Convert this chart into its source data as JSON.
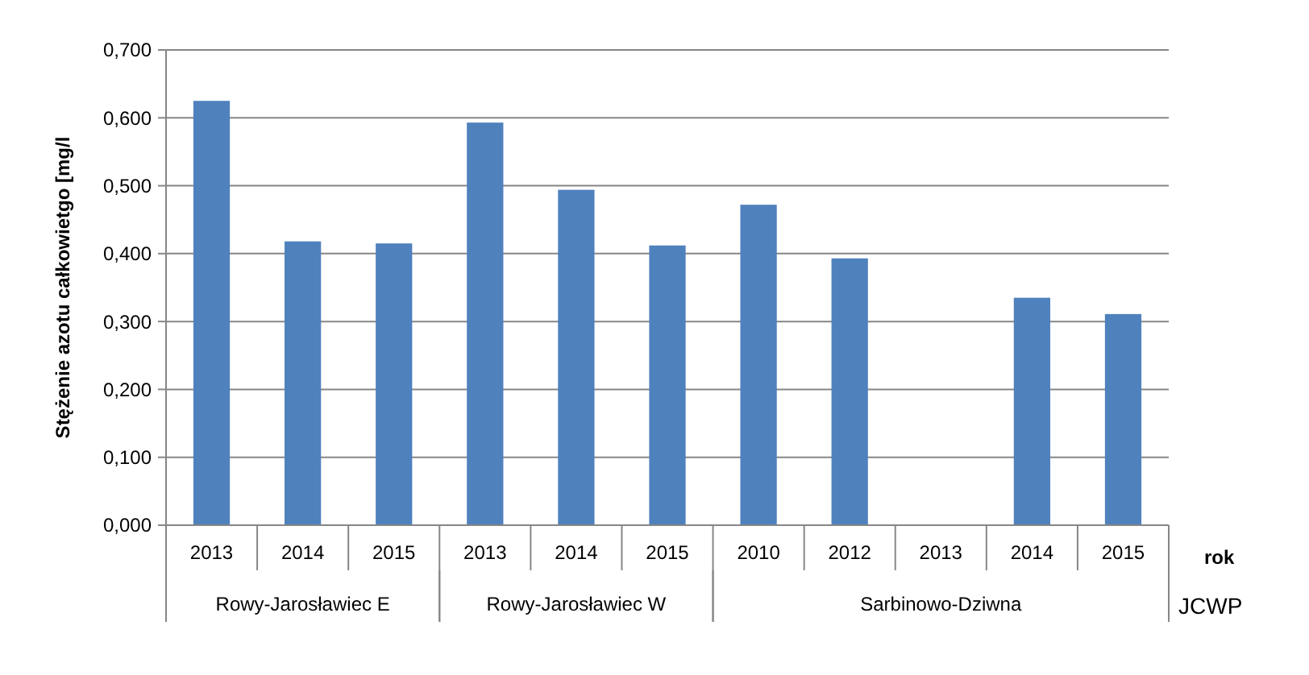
{
  "chart_data": {
    "type": "bar",
    "ylabel": "Stężenie azotu całkowietgo  [mg/l",
    "categories": [
      "2013",
      "2014",
      "2015",
      "2013",
      "2014",
      "2015",
      "2010",
      "2012",
      "2013",
      "2014",
      "2015"
    ],
    "values": [
      0.625,
      0.418,
      0.415,
      0.593,
      0.494,
      0.412,
      0.472,
      0.393,
      null,
      0.335,
      0.311
    ],
    "color": "#4f81bd",
    "ylim": [
      0,
      0.7
    ],
    "yticks": [
      {
        "value": 0,
        "label": "0,000"
      },
      {
        "value": 0.1,
        "label": "0,100"
      },
      {
        "value": 0.2,
        "label": "0,200"
      },
      {
        "value": 0.3,
        "label": "0,300"
      },
      {
        "value": 0.4,
        "label": "0,400"
      },
      {
        "value": 0.5,
        "label": "0,500"
      },
      {
        "value": 0.6,
        "label": "0,600"
      },
      {
        "value": 0.7,
        "label": "0,700"
      }
    ],
    "grid": "y",
    "annotations": [
      "Rowy-Jarosławiec E",
      "Rowy-Jarosławiec W",
      "Sarbinowo-Dziwna",
      "rok",
      "JCWP"
    ]
  }
}
